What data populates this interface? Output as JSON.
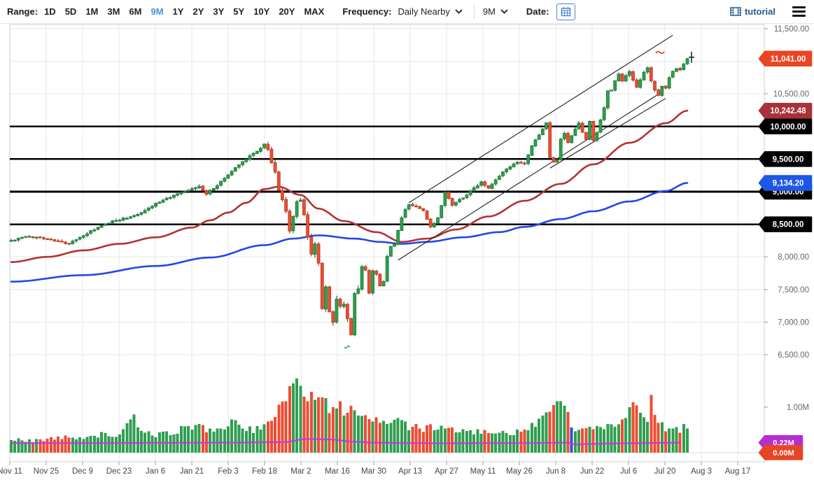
{
  "toolbar": {
    "range_label": "Range:",
    "range_options": [
      "1D",
      "5D",
      "1M",
      "3M",
      "6M",
      "9M",
      "1Y",
      "2Y",
      "3Y",
      "5Y",
      "10Y",
      "20Y",
      "MAX"
    ],
    "active_range": "9M",
    "active_range_color": "#4a90d9",
    "frequency_label": "Frequency:",
    "frequency_value": "Daily Nearby",
    "period_value": "9M",
    "date_label": "Date:",
    "tutorial_label": "tutorial"
  },
  "chart_data": {
    "type": "candlestick+volume",
    "x_labels": [
      "Nov 11",
      "Nov 25",
      "Dec 9",
      "Dec 23",
      "Jan 6",
      "Jan 21",
      "Feb 3",
      "Feb 18",
      "Mar 2",
      "Mar 16",
      "Mar 30",
      "Apr 13",
      "Apr 27",
      "May 11",
      "May 26",
      "Jun 8",
      "Jun 22",
      "Jul 6",
      "Jul 20",
      "Aug 3",
      "Aug 17"
    ],
    "price_axis": {
      "ylim": [
        6500,
        11500
      ],
      "tick_step": 500,
      "plain_ticks": [
        {
          "label": "11,500.00",
          "price": 11500
        },
        {
          "label": "10,500.00",
          "price": 10500
        },
        {
          "label": "8,000.00",
          "price": 8000
        },
        {
          "label": "7,500.00",
          "price": 7500
        },
        {
          "label": "7,000.00",
          "price": 7000
        },
        {
          "label": "6,500.00",
          "price": 6500
        }
      ],
      "gridline_prices": [
        11500,
        11000,
        10500,
        10000,
        9500,
        9000,
        8500,
        8000,
        7500,
        7000,
        6500
      ]
    },
    "volume_axis": {
      "ylim": [
        0,
        1.6
      ],
      "plain_ticks": [
        {
          "label": "1.00M",
          "value": 1.0
        }
      ]
    },
    "horizontal_level_lines": [
      10000,
      9500,
      9000,
      8500
    ],
    "price_badges": [
      {
        "label": "10,000.00",
        "price": 10000,
        "color": "#000000",
        "role": "level"
      },
      {
        "label": "9,500.00",
        "price": 9500,
        "color": "#000000",
        "role": "level"
      },
      {
        "label": "9,000.00",
        "price": 9000,
        "color": "#000000",
        "role": "level"
      },
      {
        "label": "8,500.00",
        "price": 8500,
        "color": "#000000",
        "role": "level"
      },
      {
        "label": "10,242.48",
        "price": 10242.48,
        "color": "#a83238",
        "role": "red-ma-value"
      },
      {
        "label": "9,134.20",
        "price": 9134.2,
        "color": "#1b57e8",
        "role": "blue-ma-value"
      },
      {
        "label": "11,041.00",
        "price": 11041,
        "color": "#e84524",
        "role": "last-price"
      }
    ],
    "volume_badges": [
      {
        "label": "0.22M",
        "value": 0.22,
        "color": "#b52fd0",
        "role": "volume-ma-value"
      },
      {
        "label": "0.00M",
        "value": 0.0,
        "color": "#e84524",
        "role": "last-volume"
      }
    ],
    "candles": {
      "count": 188,
      "close_anchors": [
        [
          0,
          8250
        ],
        [
          4,
          8310
        ],
        [
          8,
          8300
        ],
        [
          12,
          8250
        ],
        [
          16,
          8200
        ],
        [
          20,
          8330
        ],
        [
          24,
          8450
        ],
        [
          28,
          8550
        ],
        [
          32,
          8600
        ],
        [
          36,
          8680
        ],
        [
          40,
          8820
        ],
        [
          44,
          8920
        ],
        [
          48,
          9000
        ],
        [
          52,
          9080
        ],
        [
          54,
          8970
        ],
        [
          57,
          9100
        ],
        [
          60,
          9260
        ],
        [
          63,
          9420
        ],
        [
          66,
          9550
        ],
        [
          68,
          9620
        ],
        [
          70,
          9730
        ],
        [
          71,
          9650
        ],
        [
          72,
          9450
        ],
        [
          73,
          9300
        ],
        [
          74,
          9020
        ],
        [
          75,
          8870
        ],
        [
          76,
          8700
        ],
        [
          77,
          8400
        ],
        [
          79,
          8850
        ],
        [
          80,
          8870
        ],
        [
          81,
          8650
        ],
        [
          82,
          8300
        ],
        [
          83,
          8050
        ],
        [
          84,
          8200
        ],
        [
          85,
          7900
        ],
        [
          86,
          7200
        ],
        [
          87,
          7550
        ],
        [
          88,
          7150
        ],
        [
          89,
          7000
        ],
        [
          90,
          7350
        ],
        [
          91,
          7250
        ],
        [
          92,
          7280
        ],
        [
          93,
          7050
        ],
        [
          94,
          6800
        ],
        [
          95,
          7450
        ],
        [
          96,
          7500
        ],
        [
          97,
          7850
        ],
        [
          98,
          7800
        ],
        [
          99,
          7450
        ],
        [
          100,
          7780
        ],
        [
          101,
          7740
        ],
        [
          102,
          7560
        ],
        [
          103,
          7620
        ],
        [
          104,
          8000
        ],
        [
          105,
          8150
        ],
        [
          106,
          8200
        ],
        [
          108,
          8600
        ],
        [
          109,
          8740
        ],
        [
          110,
          8800
        ],
        [
          112,
          8780
        ],
        [
          114,
          8700
        ],
        [
          116,
          8450
        ],
        [
          118,
          8600
        ],
        [
          120,
          9000
        ],
        [
          122,
          8800
        ],
        [
          124,
          8880
        ],
        [
          126,
          8950
        ],
        [
          128,
          9050
        ],
        [
          130,
          9150
        ],
        [
          132,
          9050
        ],
        [
          134,
          9180
        ],
        [
          136,
          9300
        ],
        [
          138,
          9380
        ],
        [
          140,
          9450
        ],
        [
          142,
          9420
        ],
        [
          144,
          9700
        ],
        [
          146,
          9880
        ],
        [
          148,
          10050
        ],
        [
          149,
          9520
        ],
        [
          150,
          9450
        ],
        [
          151,
          9500
        ],
        [
          152,
          9800
        ],
        [
          153,
          9900
        ],
        [
          154,
          9750
        ],
        [
          155,
          9850
        ],
        [
          156,
          9950
        ],
        [
          157,
          10050
        ],
        [
          158,
          9900
        ],
        [
          159,
          9800
        ],
        [
          160,
          10070
        ],
        [
          161,
          9790
        ],
        [
          162,
          9900
        ],
        [
          163,
          10100
        ],
        [
          164,
          10290
        ],
        [
          165,
          10550
        ],
        [
          166,
          10560
        ],
        [
          167,
          10700
        ],
        [
          168,
          10800
        ],
        [
          169,
          10700
        ],
        [
          170,
          10780
        ],
        [
          171,
          10850
        ],
        [
          172,
          10700
        ],
        [
          173,
          10600
        ],
        [
          174,
          10720
        ],
        [
          175,
          10840
        ],
        [
          176,
          10900
        ],
        [
          177,
          10700
        ],
        [
          178,
          10550
        ],
        [
          179,
          10480
        ],
        [
          180,
          10620
        ],
        [
          181,
          10580
        ],
        [
          182,
          10750
        ],
        [
          183,
          10850
        ],
        [
          184,
          10900
        ],
        [
          185,
          10870
        ],
        [
          186,
          10960
        ],
        [
          187,
          11041
        ]
      ],
      "last_close": 11041,
      "high_volatility_range": [
        82,
        96
      ]
    },
    "volume": {
      "anchors": [
        [
          0,
          0.3
        ],
        [
          5,
          0.26
        ],
        [
          10,
          0.3
        ],
        [
          15,
          0.33
        ],
        [
          20,
          0.35
        ],
        [
          25,
          0.4
        ],
        [
          30,
          0.38
        ],
        [
          34,
          0.75
        ],
        [
          36,
          0.45
        ],
        [
          40,
          0.4
        ],
        [
          44,
          0.42
        ],
        [
          48,
          0.55
        ],
        [
          52,
          0.6
        ],
        [
          55,
          0.48
        ],
        [
          58,
          0.55
        ],
        [
          61,
          0.65
        ],
        [
          64,
          0.58
        ],
        [
          67,
          0.5
        ],
        [
          70,
          0.55
        ],
        [
          72,
          0.65
        ],
        [
          74,
          1.1
        ],
        [
          76,
          1.3
        ],
        [
          78,
          1.5
        ],
        [
          79,
          1.58
        ],
        [
          80,
          1.4
        ],
        [
          81,
          1.2
        ],
        [
          82,
          1.3
        ],
        [
          84,
          1.1
        ],
        [
          86,
          1.25
        ],
        [
          88,
          0.95
        ],
        [
          90,
          1.1
        ],
        [
          92,
          0.9
        ],
        [
          94,
          1.0
        ],
        [
          96,
          0.8
        ],
        [
          98,
          0.85
        ],
        [
          100,
          0.7
        ],
        [
          102,
          0.75
        ],
        [
          104,
          0.6
        ],
        [
          106,
          0.65
        ],
        [
          108,
          0.72
        ],
        [
          110,
          0.55
        ],
        [
          112,
          0.6
        ],
        [
          114,
          0.5
        ],
        [
          116,
          0.55
        ],
        [
          118,
          0.45
        ],
        [
          120,
          0.6
        ],
        [
          122,
          0.5
        ],
        [
          124,
          0.45
        ],
        [
          126,
          0.5
        ],
        [
          128,
          0.42
        ],
        [
          130,
          0.48
        ],
        [
          132,
          0.4
        ],
        [
          134,
          0.45
        ],
        [
          136,
          0.5
        ],
        [
          138,
          0.42
        ],
        [
          140,
          0.48
        ],
        [
          142,
          0.55
        ],
        [
          144,
          0.6
        ],
        [
          146,
          0.7
        ],
        [
          148,
          0.9
        ],
        [
          150,
          1.0
        ],
        [
          152,
          1.2
        ],
        [
          153,
          0.95
        ],
        [
          154,
          0.8
        ],
        [
          155,
          0.52
        ],
        [
          156,
          0.45
        ],
        [
          158,
          0.55
        ],
        [
          160,
          0.5
        ],
        [
          162,
          0.6
        ],
        [
          164,
          0.55
        ],
        [
          166,
          0.65
        ],
        [
          168,
          0.6
        ],
        [
          170,
          0.75
        ],
        [
          172,
          1.0
        ],
        [
          174,
          0.85
        ],
        [
          176,
          0.7
        ],
        [
          177,
          1.15
        ],
        [
          178,
          0.9
        ],
        [
          179,
          0.75
        ],
        [
          180,
          0.65
        ],
        [
          181,
          0.55
        ],
        [
          182,
          0.6
        ],
        [
          183,
          0.5
        ],
        [
          184,
          0.62
        ],
        [
          185,
          0.48
        ],
        [
          186,
          0.7
        ],
        [
          187,
          0.55
        ]
      ],
      "blue_bar_index": 155
    },
    "moving_averages": [
      {
        "name": "red-ma",
        "color": "#b23232",
        "end_value": 10242.48,
        "anchors": [
          [
            0,
            7920
          ],
          [
            10,
            8000
          ],
          [
            20,
            8100
          ],
          [
            30,
            8200
          ],
          [
            40,
            8300
          ],
          [
            50,
            8450
          ],
          [
            55,
            8560
          ],
          [
            60,
            8680
          ],
          [
            65,
            8830
          ],
          [
            70,
            9040
          ],
          [
            74,
            9075
          ],
          [
            80,
            8950
          ],
          [
            85,
            8740
          ],
          [
            92,
            8550
          ],
          [
            101,
            8380
          ],
          [
            108,
            8230
          ],
          [
            115,
            8280
          ],
          [
            123,
            8420
          ],
          [
            132,
            8620
          ],
          [
            142,
            8860
          ],
          [
            152,
            9120
          ],
          [
            161,
            9420
          ],
          [
            171,
            9750
          ],
          [
            181,
            10050
          ],
          [
            187,
            10242
          ]
        ]
      },
      {
        "name": "blue-ma",
        "color": "#2447e6",
        "end_value": 9134.2,
        "anchors": [
          [
            0,
            7620
          ],
          [
            20,
            7720
          ],
          [
            40,
            7860
          ],
          [
            55,
            7990
          ],
          [
            70,
            8180
          ],
          [
            78,
            8280
          ],
          [
            85,
            8330
          ],
          [
            95,
            8280
          ],
          [
            102,
            8230
          ],
          [
            108,
            8200
          ],
          [
            115,
            8230
          ],
          [
            125,
            8300
          ],
          [
            135,
            8380
          ],
          [
            142,
            8460
          ],
          [
            152,
            8580
          ],
          [
            161,
            8700
          ],
          [
            171,
            8850
          ],
          [
            181,
            9010
          ],
          [
            187,
            9134
          ]
        ]
      }
    ],
    "volume_ma": {
      "name": "volume-ma",
      "color": "#c439d8",
      "end_value": 0.22,
      "end_index": 185,
      "anchors": [
        [
          0,
          0.21
        ],
        [
          20,
          0.21
        ],
        [
          40,
          0.215
        ],
        [
          60,
          0.22
        ],
        [
          75,
          0.23
        ],
        [
          82,
          0.3
        ],
        [
          88,
          0.29
        ],
        [
          95,
          0.24
        ],
        [
          100,
          0.22
        ],
        [
          110,
          0.21
        ],
        [
          120,
          0.205
        ],
        [
          130,
          0.21
        ],
        [
          140,
          0.21
        ],
        [
          150,
          0.215
        ],
        [
          154,
          0.22
        ],
        [
          156,
          0.18
        ],
        [
          160,
          0.19
        ],
        [
          165,
          0.2
        ],
        [
          170,
          0.205
        ],
        [
          175,
          0.21
        ],
        [
          180,
          0.215
        ],
        [
          185,
          0.22
        ]
      ]
    },
    "trendlines": [
      {
        "from": [
          110,
          8830
        ],
        "to": [
          183,
          11400
        ]
      },
      {
        "from": [
          107,
          7950
        ],
        "to": [
          180,
          10530
        ]
      },
      {
        "from": [
          149,
          9360
        ],
        "to": [
          181,
          10430
        ]
      }
    ],
    "colors": {
      "up": "#2f9e50",
      "up_border": "#177a35",
      "down": "#ee4c31",
      "down_border": "#bb3a1e",
      "wick": "#3a3a3a",
      "level_line": "#000000",
      "trendline": "#1a1a1a",
      "volume_blue_bar": "#3050cc",
      "grid": "#e7e7e7",
      "border": "#cfcfcf",
      "axis_text": "#666666",
      "x_axis_text": "#444444",
      "marker_red": "#e84524",
      "marker_green": "#2f9e50"
    }
  }
}
